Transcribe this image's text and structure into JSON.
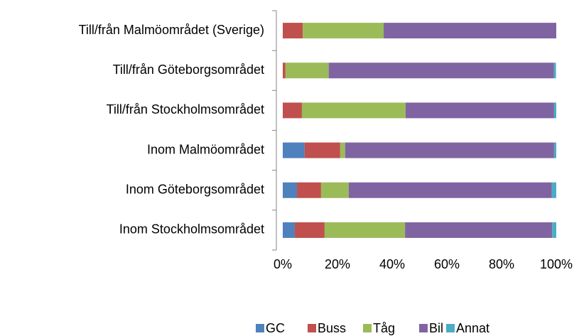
{
  "chart_data": {
    "type": "stacked_barh",
    "categories": [
      "Till/från Malmöområdet (Sverige)",
      "Till/från Göteborgsområdet",
      "Till/från Stockholmsområdet",
      "Inom Malmöområdet",
      "Inom Göteborgsområdet",
      "Inom Stockholmsområdet"
    ],
    "series": [
      {
        "name": "GC",
        "color": "#4f81bd",
        "values": [
          0,
          0,
          0,
          8,
          5.2,
          4.4
        ]
      },
      {
        "name": "Buss",
        "color": "#c0504d",
        "values": [
          7.3,
          1,
          7,
          13,
          8.8,
          10.9
        ]
      },
      {
        "name": "Tåg",
        "color": "#9bbb59",
        "values": [
          29.6,
          15.8,
          37.9,
          1.8,
          10.1,
          29.4
        ]
      },
      {
        "name": "Bil",
        "color": "#8064a2",
        "values": [
          63.1,
          82.3,
          54.3,
          76.4,
          74.3,
          53.8
        ]
      },
      {
        "name": "Annat",
        "color": "#4bacc6",
        "values": [
          0,
          0.8,
          0.8,
          0.8,
          1.6,
          1.5
        ]
      }
    ],
    "xlim": [
      0,
      100
    ],
    "xticks": [
      {
        "value": 0,
        "label": "0%"
      },
      {
        "value": 20,
        "label": "20%"
      },
      {
        "value": 40,
        "label": "40%"
      },
      {
        "value": 60,
        "label": "60%"
      },
      {
        "value": 80,
        "label": "80%"
      },
      {
        "value": 100,
        "label": "100%"
      }
    ],
    "grid": false,
    "legend": "bottom"
  }
}
